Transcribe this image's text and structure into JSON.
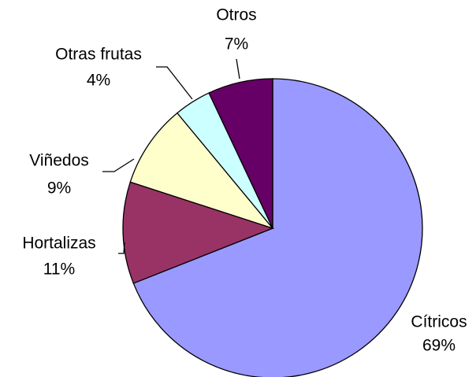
{
  "chart_data": {
    "type": "pie",
    "categories": [
      "Cítricos",
      "Hortalizas",
      "Viñedos",
      "Otras frutas",
      "Otros"
    ],
    "values": [
      69,
      11,
      9,
      4,
      7
    ],
    "value_labels": [
      "69%",
      "11%",
      "9%",
      "4%",
      "7%"
    ],
    "colors": [
      "#9999ff",
      "#993366",
      "#ffffcc",
      "#ccffff",
      "#660066"
    ]
  }
}
